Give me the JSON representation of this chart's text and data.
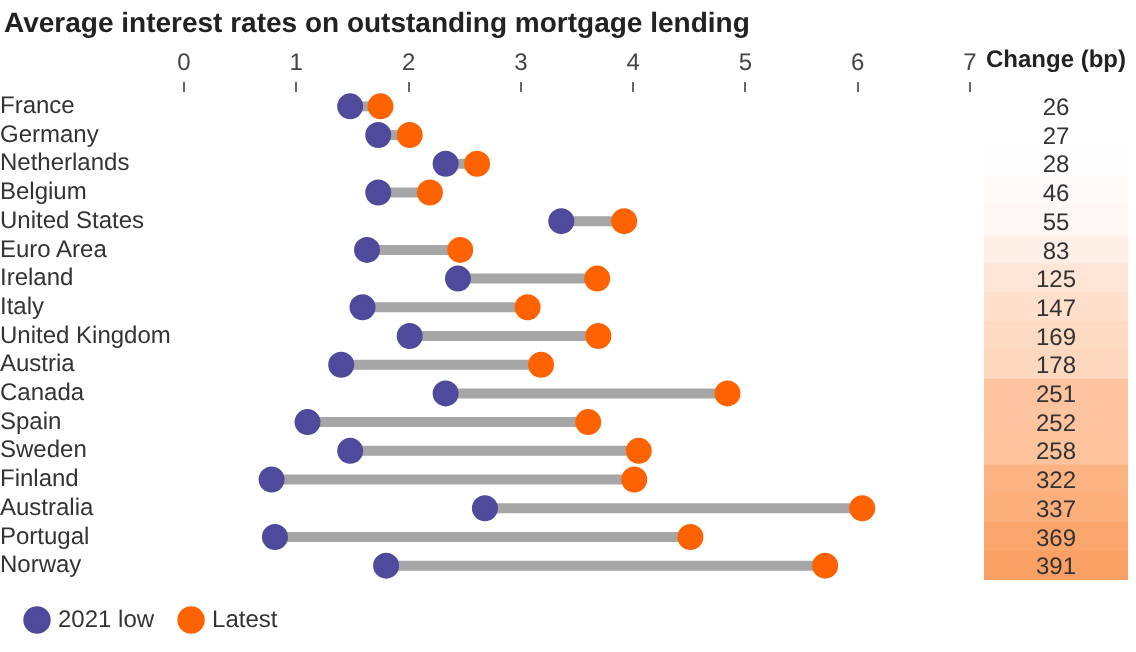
{
  "chart_data": [
    {
      "type": "scatter",
      "title": "Average interest rates on outstanding mortgage lending",
      "orientation": "horizontal",
      "categories": [
        "France",
        "Germany",
        "Netherlands",
        "Belgium",
        "United States",
        "Euro Area",
        "Ireland",
        "Italy",
        "United Kingdom",
        "Austria",
        "Canada",
        "Spain",
        "Sweden",
        "Finland",
        "Australia",
        "Portugal",
        "Norway"
      ],
      "series": [
        {
          "name": "2021 low",
          "color": "#4f4a9b",
          "values": [
            1.48,
            1.73,
            2.33,
            1.73,
            3.36,
            1.63,
            2.44,
            1.59,
            2.01,
            1.4,
            2.33,
            1.1,
            1.48,
            0.78,
            2.68,
            0.81,
            1.8
          ]
        },
        {
          "name": "Latest",
          "color": "#ff6200",
          "values": [
            1.75,
            2.01,
            2.61,
            2.19,
            3.92,
            2.46,
            3.68,
            3.06,
            3.69,
            3.18,
            4.84,
            3.6,
            4.05,
            4.01,
            6.04,
            4.51,
            5.71
          ]
        }
      ],
      "xlim": [
        0,
        7
      ],
      "xticks": [
        0,
        1,
        2,
        3,
        4,
        5,
        6,
        7
      ],
      "grid": false,
      "marker": "circle",
      "legend": "bottom left"
    },
    {
      "type": "heatmap",
      "categories": [
        "Change (bp)"
      ],
      "tick_labels": "x",
      "y_categories": [
        "France",
        "Germany",
        "Netherlands",
        "Belgium",
        "United States",
        "Euro Area",
        "Ireland",
        "Italy",
        "United Kingdom",
        "Austria",
        "Canada",
        "Spain",
        "Sweden",
        "Finland",
        "Australia",
        "Portugal",
        "Norway"
      ],
      "cells": [
        [
          26
        ],
        [
          27
        ],
        [
          28
        ],
        [
          46
        ],
        [
          55
        ],
        [
          83
        ],
        [
          125
        ],
        [
          147
        ],
        [
          169
        ],
        [
          178
        ],
        [
          251
        ],
        [
          252
        ],
        [
          258
        ],
        [
          322
        ],
        [
          337
        ],
        [
          369
        ],
        [
          391
        ]
      ],
      "data_labels": true
    }
  ]
}
